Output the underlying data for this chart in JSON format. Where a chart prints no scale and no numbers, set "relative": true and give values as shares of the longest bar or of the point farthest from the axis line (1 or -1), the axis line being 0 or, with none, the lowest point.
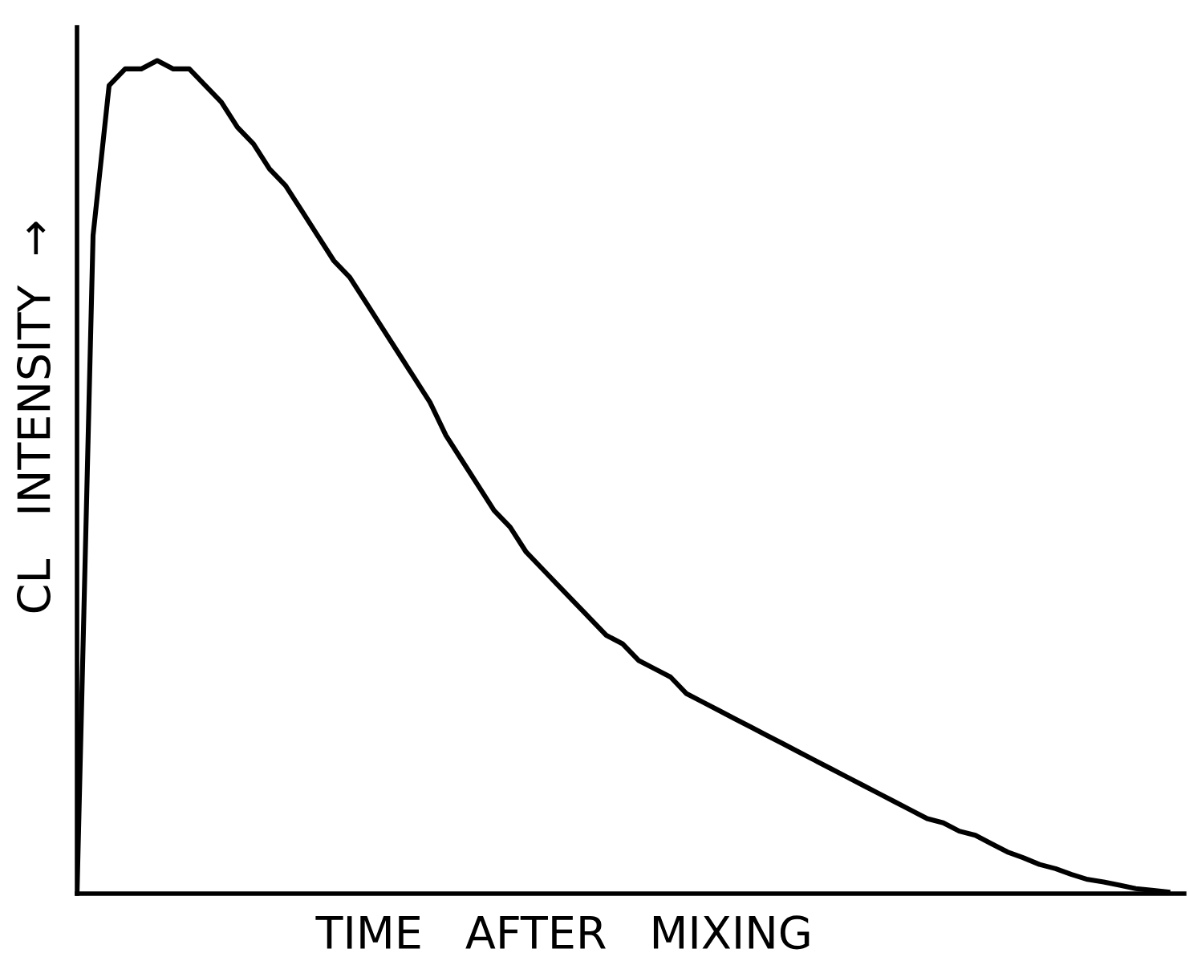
{
  "chart_data": {
    "type": "line",
    "relative": true,
    "xlabel": "TIME   AFTER   MIXING",
    "ylabel": "CL   INTENSITY  →",
    "categories": [
      null,
      null,
      null,
      null,
      null,
      null,
      null,
      null,
      null,
      null,
      null,
      null,
      null,
      null,
      null,
      null,
      null,
      null,
      null,
      null,
      null,
      null,
      null,
      null,
      null,
      null,
      null,
      null,
      null,
      null,
      null,
      null,
      null,
      null,
      null,
      null,
      null,
      null,
      null,
      null,
      null,
      null,
      null,
      null,
      null,
      null,
      null,
      null,
      null,
      null,
      null,
      null,
      null,
      null,
      null,
      null,
      null,
      null,
      null,
      null,
      null,
      null,
      null,
      null,
      null,
      null,
      null,
      null,
      null
    ],
    "series": [
      {
        "color": "#000000",
        "values": [
          0,
          0.79,
          0.97,
          0.99,
          0.99,
          1,
          0.99,
          0.99,
          0.97,
          0.95,
          0.92,
          0.9,
          0.87,
          0.85,
          0.82,
          0.79,
          0.76,
          0.74,
          0.71,
          0.68,
          0.65,
          0.62,
          0.59,
          0.55,
          0.52,
          0.49,
          0.46,
          0.44,
          0.41,
          0.39,
          0.37,
          0.35,
          0.33,
          0.31,
          0.3,
          0.28,
          0.27,
          0.26,
          0.24,
          0.23,
          0.22,
          0.21,
          0.2,
          0.19,
          0.18,
          0.17,
          0.16,
          0.15,
          0.14,
          0.13,
          0.12,
          0.11,
          0.1,
          0.09,
          0.085,
          0.075,
          0.07,
          0.06,
          0.05,
          0.043,
          0.035,
          0.03,
          0.023,
          0.017,
          0.014,
          0.01,
          0.006,
          0.004,
          0.002
        ]
      }
    ],
    "grid": false,
    "legend": false,
    "marker": "none",
    "line_style": "solid"
  }
}
